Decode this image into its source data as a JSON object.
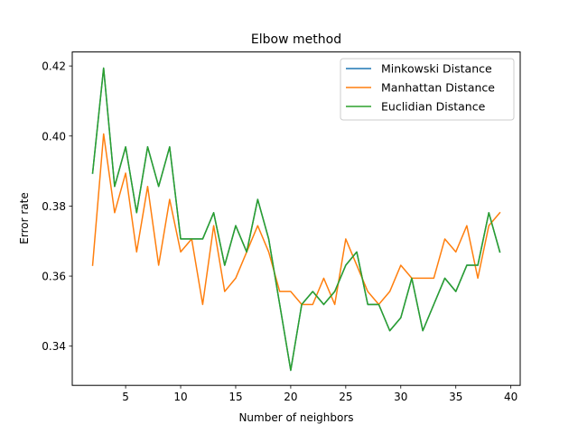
{
  "chart_data": {
    "type": "line",
    "title": "Elbow method",
    "xlabel": "Number of neighbors",
    "ylabel": "Error rate",
    "xlim": [
      0.15,
      40.85
    ],
    "ylim": [
      0.3288,
      0.424
    ],
    "xticks": [
      5,
      10,
      15,
      20,
      25,
      30,
      35,
      40
    ],
    "yticks": [
      0.34,
      0.36,
      0.38,
      0.4,
      0.42
    ],
    "ytick_labels": [
      "0.34",
      "0.36",
      "0.38",
      "0.40",
      "0.42"
    ],
    "grid": false,
    "legend_position": "top-right",
    "x": [
      2,
      3,
      4,
      5,
      6,
      7,
      8,
      9,
      10,
      11,
      12,
      13,
      14,
      15,
      16,
      17,
      18,
      19,
      20,
      21,
      22,
      23,
      24,
      25,
      26,
      27,
      28,
      29,
      30,
      31,
      32,
      33,
      34,
      35,
      36,
      37,
      38,
      39
    ],
    "series": [
      {
        "name": "Minkowski Distance",
        "color": "#1f77b4",
        "values": [
          0.3894,
          0.4194,
          0.3856,
          0.3969,
          0.3781,
          0.3969,
          0.3856,
          0.3969,
          0.3706,
          0.3706,
          0.3706,
          0.3781,
          0.3631,
          0.3744,
          0.3669,
          0.3819,
          0.3706,
          0.3519,
          0.3331,
          0.3519,
          0.3556,
          0.3519,
          0.3556,
          0.3631,
          0.3669,
          0.3519,
          0.3519,
          0.3444,
          0.3481,
          0.3594,
          0.3444,
          0.3519,
          0.3594,
          0.3556,
          0.3631,
          0.3631,
          0.3781,
          0.3669
        ]
      },
      {
        "name": "Manhattan Distance",
        "color": "#ff7f0e",
        "values": [
          0.3631,
          0.4006,
          0.3781,
          0.3894,
          0.3669,
          0.3856,
          0.3631,
          0.3819,
          0.3669,
          0.3706,
          0.3519,
          0.3744,
          0.3556,
          0.3594,
          0.3669,
          0.3744,
          0.3669,
          0.3556,
          0.3556,
          0.3519,
          0.3519,
          0.3594,
          0.3519,
          0.3706,
          0.3631,
          0.3556,
          0.3519,
          0.3556,
          0.3631,
          0.3594,
          0.3594,
          0.3594,
          0.3706,
          0.3669,
          0.3744,
          0.3594,
          0.3744,
          0.3781
        ]
      },
      {
        "name": "Euclidian Distance",
        "color": "#2ca02c",
        "values": [
          0.3894,
          0.4194,
          0.3856,
          0.3969,
          0.3781,
          0.3969,
          0.3856,
          0.3969,
          0.3706,
          0.3706,
          0.3706,
          0.3781,
          0.3631,
          0.3744,
          0.3669,
          0.3819,
          0.3706,
          0.3519,
          0.3331,
          0.3519,
          0.3556,
          0.3519,
          0.3556,
          0.3631,
          0.3669,
          0.3519,
          0.3519,
          0.3444,
          0.3481,
          0.3594,
          0.3444,
          0.3519,
          0.3594,
          0.3556,
          0.3631,
          0.3631,
          0.3781,
          0.3669
        ]
      }
    ]
  }
}
